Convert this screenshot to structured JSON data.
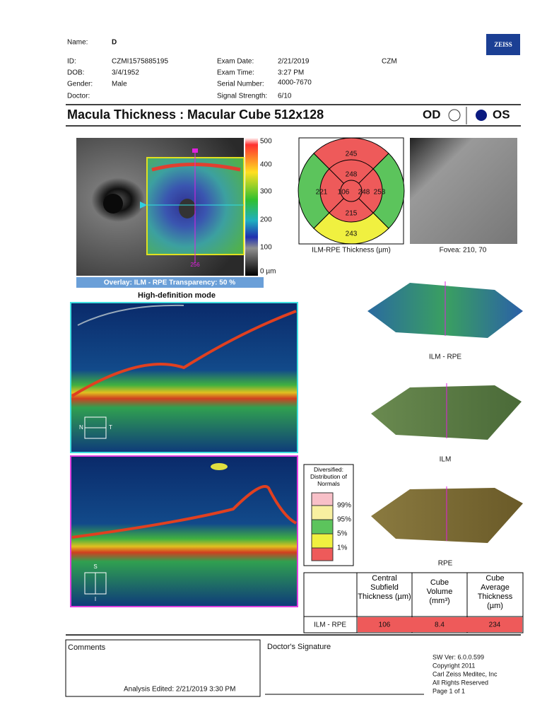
{
  "header": {
    "name_label": "Name:",
    "name": "D",
    "id_label": "ID:",
    "id": "CZMI1575885195",
    "dob_label": "DOB:",
    "dob": "3/4/1952",
    "gender_label": "Gender:",
    "gender": "Male",
    "doctor_label": "Doctor:",
    "exam_date_label": "Exam Date:",
    "exam_date": "2/21/2019",
    "exam_time_label": "Exam Time:",
    "exam_time": "3:27 PM",
    "serial_label": "Serial Number:",
    "serial": "4000-7670",
    "signal_label": "Signal Strength:",
    "signal": "6/10",
    "site": "CZM",
    "logo": "ZEISS"
  },
  "title": {
    "text": "Macula Thickness : Macular Cube 512x128",
    "od": "OD",
    "os": "OS"
  },
  "thickness_map": {
    "scale": [
      "500",
      "400",
      "300",
      "200",
      "100",
      "0 µm"
    ],
    "marker": "256",
    "overlay": "Overlay: ILM - RPE  Transparency: 50 %"
  },
  "grid": {
    "outer_superior": "245",
    "inner_superior": "248",
    "outer_nasal": "221",
    "center": "106",
    "inner_temporal": "248",
    "outer_temporal": "253",
    "inner_inferior": "215",
    "outer_inferior": "243",
    "caption": "ILM-RPE Thickness (µm)"
  },
  "fovea": {
    "caption": "Fovea: 210, 70"
  },
  "bscan": {
    "mode": "High-definition mode",
    "n": "N",
    "t": "T",
    "s": "S",
    "i": "I"
  },
  "surfaces": {
    "ilm_rpe": "ILM - RPE",
    "ilm": "ILM",
    "rpe": "RPE"
  },
  "legend": {
    "title": "Diversified: Distribution of Normals",
    "items": [
      "99%",
      "95%",
      "5%",
      "1%"
    ]
  },
  "table": {
    "headers": [
      "Central Subfield Thickness (µm)",
      "Cube Volume (mm³)",
      "Cube Average Thickness (µm)"
    ],
    "row_label": "ILM - RPE",
    "values": [
      "106",
      "8.4",
      "234"
    ]
  },
  "footer": {
    "comments": "Comments",
    "analysis": "Analysis Edited:  2/21/2019 3:30 PM",
    "signature": "Doctor's Signature",
    "sw": [
      "SW Ver: 6.0.0.599",
      "Copyright 2011",
      "Carl Zeiss Meditec, Inc",
      "All Rights Reserved",
      "Page 1 of 1"
    ]
  }
}
